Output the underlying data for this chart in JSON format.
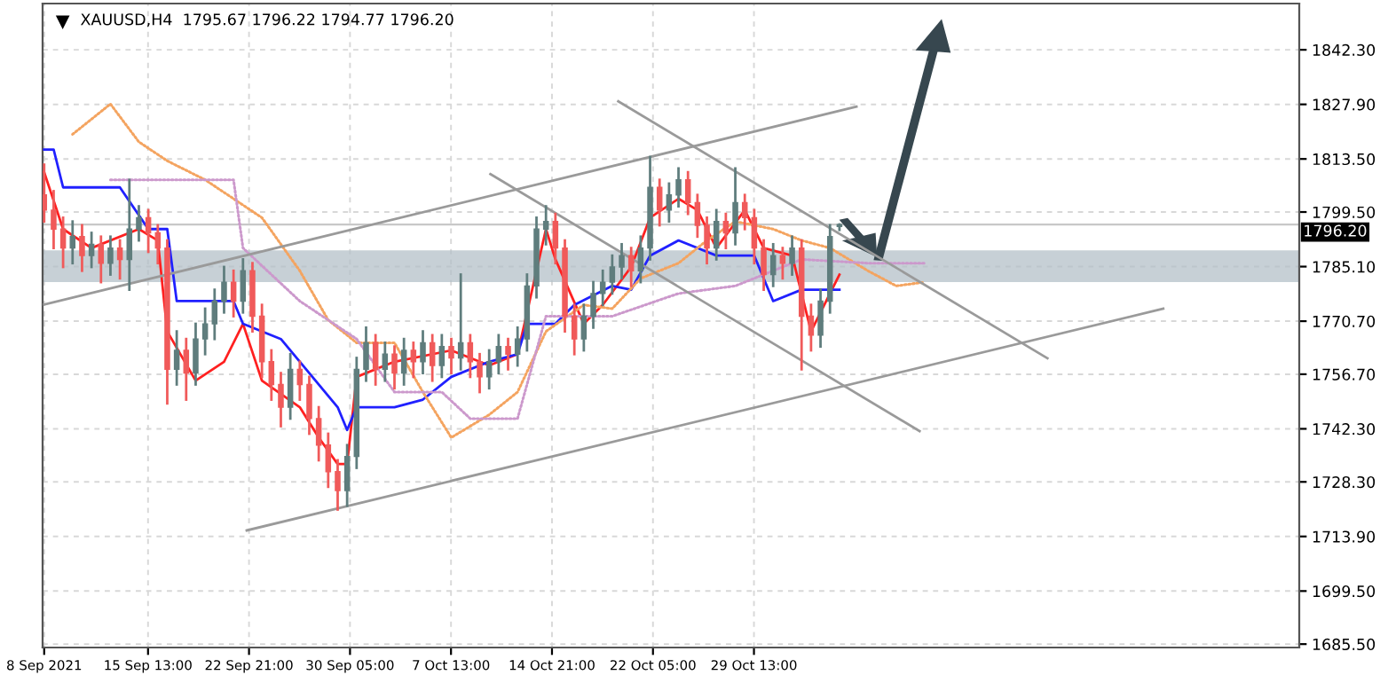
{
  "chart_data": {
    "type": "candlestick",
    "title": "XAUUSD,H4  1795.67 1796.22 1794.77 1796.20",
    "x": [
      "2021-09-08T00:00",
      "2021-09-08T16:30",
      "2021-09-09T09:00",
      "2021-09-10T01:30",
      "2021-09-10T18:00",
      "2021-09-11T10:30",
      "2021-09-12T03:00",
      "2021-09-12T19:30",
      "2021-09-13T12:00",
      "2021-09-14T04:30",
      "2021-09-14T21:00",
      "2021-09-15T13:30",
      "2021-09-16T06:00",
      "2021-09-16T22:30",
      "2021-09-17T15:00",
      "2021-09-18T07:30",
      "2021-09-19T00:00",
      "2021-09-19T16:30",
      "2021-09-20T09:00",
      "2021-09-21T01:30",
      "2021-09-21T18:00",
      "2021-09-22T10:30",
      "2021-09-23T03:00",
      "2021-09-23T19:30",
      "2021-09-24T12:00",
      "2021-09-25T04:30",
      "2021-09-25T21:00",
      "2021-09-26T13:30",
      "2021-09-27T06:00",
      "2021-09-27T22:30",
      "2021-09-28T15:00",
      "2021-09-29T07:30",
      "2021-09-30T00:00",
      "2021-09-30T16:30",
      "2021-10-01T09:00",
      "2021-10-02T01:30",
      "2021-10-02T18:00",
      "2021-10-03T10:30",
      "2021-10-04T03:00",
      "2021-10-04T19:30",
      "2021-10-05T12:00",
      "2021-10-06T04:30",
      "2021-10-06T21:00",
      "2021-10-07T13:30",
      "2021-10-08T06:00",
      "2021-10-08T22:30",
      "2021-10-09T15:00",
      "2021-10-10T07:30",
      "2021-10-11T00:00",
      "2021-10-11T16:30",
      "2021-10-12T09:00",
      "2021-10-13T01:30",
      "2021-10-13T18:00",
      "2021-10-14T10:30",
      "2021-10-15T03:00",
      "2021-10-15T19:30",
      "2021-10-16T12:00",
      "2021-10-17T04:30",
      "2021-10-17T21:00",
      "2021-10-18T13:30",
      "2021-10-19T06:00",
      "2021-10-19T22:30",
      "2021-10-20T15:00",
      "2021-10-21T07:30",
      "2021-10-22T00:00",
      "2021-10-22T16:30",
      "2021-10-23T09:00",
      "2021-10-24T01:30",
      "2021-10-24T18:00",
      "2021-10-25T10:30",
      "2021-10-26T03:00",
      "2021-10-26T19:30",
      "2021-10-27T12:00",
      "2021-10-28T04:30",
      "2021-10-28T21:00",
      "2021-10-29T13:30",
      "2021-10-30T06:00",
      "2021-10-30T22:30",
      "2021-10-31T15:00",
      "2021-11-01T07:30",
      "2021-11-02T00:00",
      "2021-11-02T16:30",
      "2021-11-03T09:00",
      "2021-11-04T01:30",
      "2021-11-04T18:00"
    ],
    "ohlc": [
      [
        1804,
        1812,
        1797,
        1800
      ],
      [
        1800,
        1805,
        1790,
        1795
      ],
      [
        1795,
        1798,
        1785,
        1790
      ],
      [
        1790,
        1797,
        1786,
        1793
      ],
      [
        1793,
        1796,
        1784,
        1788
      ],
      [
        1788,
        1794,
        1785,
        1791
      ],
      [
        1791,
        1793,
        1781,
        1786
      ],
      [
        1786,
        1793,
        1783,
        1790
      ],
      [
        1790,
        1792,
        1782,
        1787
      ],
      [
        1787,
        1808,
        1779,
        1795
      ],
      [
        1795,
        1801,
        1792,
        1798
      ],
      [
        1798,
        1800,
        1789,
        1794
      ],
      [
        1794,
        1796,
        1786,
        1790
      ],
      [
        1790,
        1792,
        1749,
        1758
      ],
      [
        1758,
        1768,
        1754,
        1763
      ],
      [
        1763,
        1766,
        1750,
        1757
      ],
      [
        1757,
        1770,
        1754,
        1766
      ],
      [
        1766,
        1774,
        1762,
        1770
      ],
      [
        1770,
        1779,
        1766,
        1776
      ],
      [
        1776,
        1785,
        1773,
        1781
      ],
      [
        1781,
        1784,
        1772,
        1776
      ],
      [
        1776,
        1787,
        1773,
        1784
      ],
      [
        1784,
        1786,
        1768,
        1772
      ],
      [
        1772,
        1775,
        1756,
        1760
      ],
      [
        1760,
        1763,
        1750,
        1754
      ],
      [
        1754,
        1757,
        1743,
        1748
      ],
      [
        1748,
        1762,
        1745,
        1758
      ],
      [
        1758,
        1760,
        1750,
        1754
      ],
      [
        1754,
        1756,
        1741,
        1745
      ],
      [
        1745,
        1748,
        1734,
        1738
      ],
      [
        1738,
        1741,
        1727,
        1731
      ],
      [
        1731,
        1734,
        1721,
        1726
      ],
      [
        1726,
        1738,
        1722,
        1735
      ],
      [
        1735,
        1761,
        1732,
        1758
      ],
      [
        1758,
        1769,
        1755,
        1765
      ],
      [
        1765,
        1767,
        1754,
        1758
      ],
      [
        1758,
        1765,
        1755,
        1762
      ],
      [
        1762,
        1764,
        1753,
        1757
      ],
      [
        1757,
        1766,
        1754,
        1763
      ],
      [
        1763,
        1765,
        1756,
        1760
      ],
      [
        1760,
        1768,
        1757,
        1765
      ],
      [
        1765,
        1767,
        1755,
        1759
      ],
      [
        1759,
        1767,
        1756,
        1764
      ],
      [
        1764,
        1766,
        1757,
        1761
      ],
      [
        1761,
        1783,
        1758,
        1765
      ],
      [
        1765,
        1767,
        1756,
        1760
      ],
      [
        1760,
        1762,
        1752,
        1756
      ],
      [
        1756,
        1763,
        1753,
        1760
      ],
      [
        1760,
        1767,
        1757,
        1764
      ],
      [
        1764,
        1766,
        1758,
        1762
      ],
      [
        1762,
        1769,
        1759,
        1766
      ],
      [
        1766,
        1783,
        1763,
        1780
      ],
      [
        1780,
        1798,
        1777,
        1795
      ],
      [
        1795,
        1801,
        1791,
        1797
      ],
      [
        1797,
        1799,
        1786,
        1790
      ],
      [
        1790,
        1792,
        1768,
        1772
      ],
      [
        1772,
        1775,
        1762,
        1766
      ],
      [
        1766,
        1775,
        1763,
        1772
      ],
      [
        1772,
        1781,
        1769,
        1778
      ],
      [
        1778,
        1784,
        1775,
        1781
      ],
      [
        1781,
        1788,
        1778,
        1785
      ],
      [
        1785,
        1791,
        1782,
        1788
      ],
      [
        1788,
        1790,
        1780,
        1784
      ],
      [
        1784,
        1793,
        1781,
        1790
      ],
      [
        1790,
        1814,
        1787,
        1806
      ],
      [
        1806,
        1808,
        1796,
        1800
      ],
      [
        1800,
        1807,
        1797,
        1804
      ],
      [
        1804,
        1811,
        1801,
        1808
      ],
      [
        1808,
        1810,
        1799,
        1802
      ],
      [
        1802,
        1804,
        1793,
        1796
      ],
      [
        1796,
        1798,
        1786,
        1790
      ],
      [
        1790,
        1800,
        1787,
        1797
      ],
      [
        1797,
        1799,
        1790,
        1794
      ],
      [
        1794,
        1811,
        1791,
        1802
      ],
      [
        1802,
        1804,
        1795,
        1798
      ],
      [
        1798,
        1800,
        1786,
        1790
      ],
      [
        1790,
        1792,
        1779,
        1783
      ],
      [
        1783,
        1791,
        1780,
        1788
      ],
      [
        1788,
        1790,
        1782,
        1786
      ],
      [
        1786,
        1793,
        1783,
        1790
      ],
      [
        1790,
        1792,
        1758,
        1772
      ],
      [
        1772,
        1775,
        1763,
        1767
      ],
      [
        1767,
        1779,
        1764,
        1776
      ],
      [
        1776,
        1796,
        1773,
        1793
      ],
      [
        1795.67,
        1796.22,
        1794.77,
        1796.2
      ]
    ],
    "colors": [
      "#f05a5a",
      "#f05a5a",
      "#f05a5a",
      "#5f7d7d",
      "#f05a5a",
      "#5f7d7d",
      "#f05a5a",
      "#5f7d7d",
      "#f05a5a",
      "#5f7d7d",
      "#5f7d7d",
      "#f05a5a",
      "#f05a5a",
      "#f05a5a",
      "#5f7d7d",
      "#f05a5a",
      "#5f7d7d",
      "#5f7d7d",
      "#5f7d7d",
      "#5f7d7d",
      "#f05a5a",
      "#5f7d7d",
      "#f05a5a",
      "#f05a5a",
      "#f05a5a",
      "#f05a5a",
      "#5f7d7d",
      "#f05a5a",
      "#f05a5a",
      "#f05a5a",
      "#f05a5a",
      "#f05a5a",
      "#5f7d7d",
      "#5f7d7d",
      "#5f7d7d",
      "#f05a5a",
      "#5f7d7d",
      "#f05a5a",
      "#5f7d7d",
      "#f05a5a",
      "#5f7d7d",
      "#f05a5a",
      "#5f7d7d",
      "#f05a5a",
      "#5f7d7d",
      "#f05a5a",
      "#f05a5a",
      "#5f7d7d",
      "#5f7d7d",
      "#f05a5a",
      "#5f7d7d",
      "#5f7d7d",
      "#5f7d7d",
      "#5f7d7d",
      "#f05a5a",
      "#f05a5a",
      "#f05a5a",
      "#5f7d7d",
      "#5f7d7d",
      "#5f7d7d",
      "#5f7d7d",
      "#5f7d7d",
      "#f05a5a",
      "#5f7d7d",
      "#5f7d7d",
      "#f05a5a",
      "#5f7d7d",
      "#5f7d7d",
      "#f05a5a",
      "#f05a5a",
      "#f05a5a",
      "#5f7d7d",
      "#f05a5a",
      "#5f7d7d",
      "#f05a5a",
      "#f05a5a",
      "#f05a5a",
      "#5f7d7d",
      "#f05a5a",
      "#5f7d7d",
      "#f05a5a",
      "#f05a5a",
      "#5f7d7d",
      "#5f7d7d",
      "#5f7d7d"
    ],
    "series": [
      {
        "type": "line",
        "color": "#ff2020",
        "x": [
          "2021-09-08T00:00",
          "2021-09-09T09:00",
          "2021-09-11T10:30",
          "2021-09-14T21:00",
          "2021-09-16T06:00",
          "2021-09-16T22:30",
          "2021-09-19T00:00",
          "2021-09-21T01:30",
          "2021-09-22T10:30",
          "2021-09-23T19:30",
          "2021-09-26T13:30",
          "2021-09-27T22:30",
          "2021-09-29T07:30",
          "2021-09-30T00:00",
          "2021-09-30T16:30",
          "2021-10-03T10:30",
          "2021-10-07T13:30",
          "2021-10-10T07:30",
          "2021-10-12T09:00",
          "2021-10-14T10:30",
          "2021-10-15T03:00",
          "2021-10-17T04:30",
          "2021-10-18T13:30",
          "2021-10-20T15:00",
          "2021-10-22T00:00",
          "2021-10-24T01:30",
          "2021-10-25T10:30",
          "2021-10-26T19:30",
          "2021-10-28T21:00",
          "2021-10-30T06:00",
          "2021-11-01T07:30",
          "2021-11-02T16:30",
          "2021-11-04T01:30",
          "2021-11-04T18:00"
        ],
        "values": [
          1810,
          1795,
          1790,
          1795,
          1792,
          1768,
          1755,
          1760,
          1770,
          1755,
          1748,
          1740,
          1733,
          1733,
          1756,
          1760,
          1763,
          1759,
          1762,
          1795,
          1787,
          1770,
          1775,
          1785,
          1798,
          1803,
          1800,
          1790,
          1800,
          1790,
          1788,
          1768,
          1778,
          1783
        ]
      },
      {
        "type": "line",
        "color": "#2020ff",
        "x": [
          "2021-09-08T00:00",
          "2021-09-08T16:30",
          "2021-09-09T09:00",
          "2021-09-13T12:00",
          "2021-09-15T13:30",
          "2021-09-16T22:30",
          "2021-09-17T15:00",
          "2021-09-21T18:00",
          "2021-09-22T10:30",
          "2021-09-25T04:30",
          "2021-09-29T07:30",
          "2021-09-30T00:00",
          "2021-09-30T16:30",
          "2021-10-03T10:30",
          "2021-10-05T12:00",
          "2021-10-07T13:30",
          "2021-10-10T07:30",
          "2021-10-12T09:00",
          "2021-10-13T01:30",
          "2021-10-15T03:00",
          "2021-10-16T12:00",
          "2021-10-19T06:00",
          "2021-10-20T15:00",
          "2021-10-22T00:00",
          "2021-10-24T01:30",
          "2021-10-26T19:30",
          "2021-10-29T13:30",
          "2021-10-30T22:30",
          "2021-11-02T00:00",
          "2021-11-04T18:00"
        ],
        "values": [
          1816,
          1816,
          1806,
          1806,
          1795,
          1795,
          1776,
          1776,
          1770,
          1766,
          1748,
          1742,
          1748,
          1748,
          1750,
          1756,
          1760,
          1762,
          1770,
          1770,
          1775,
          1780,
          1779,
          1788,
          1792,
          1788,
          1788,
          1776,
          1779,
          1779
        ]
      },
      {
        "type": "line",
        "color": "#f4a460",
        "line_style": "dotted",
        "x": [
          "2021-09-10T01:30",
          "2021-09-12T19:30",
          "2021-09-14T21:00",
          "2021-09-16T22:30",
          "2021-09-19T16:30",
          "2021-09-23T19:30",
          "2021-09-26T13:30",
          "2021-09-28T15:00",
          "2021-09-30T16:30",
          "2021-10-03T10:30",
          "2021-10-05T12:00",
          "2021-10-07T13:30",
          "2021-10-10T07:30",
          "2021-10-12T09:00",
          "2021-10-14T10:30",
          "2021-10-17T04:30",
          "2021-10-19T06:00",
          "2021-10-21T07:30",
          "2021-10-24T01:30",
          "2021-10-26T03:00",
          "2021-10-28T04:30",
          "2021-10-30T22:30",
          "2021-11-02T00:00",
          "2021-11-04T01:30",
          "2021-11-06T19:30",
          "2021-11-08T21:00",
          "2021-11-10T22:30"
        ],
        "values": [
          1820,
          1828,
          1818,
          1813,
          1808,
          1798,
          1784,
          1771,
          1765,
          1765,
          1752,
          1740,
          1746,
          1752,
          1768,
          1775,
          1774,
          1782,
          1786,
          1792,
          1797,
          1795,
          1792,
          1790,
          1784,
          1780,
          1781
        ]
      },
      {
        "type": "line",
        "color": "#cc99cc",
        "line_style": "dotted",
        "x": [
          "2021-09-12T19:30",
          "2021-09-16T22:30",
          "2021-09-21T18:00",
          "2021-09-22T10:30",
          "2021-09-26T13:30",
          "2021-09-30T16:30",
          "2021-10-03T10:30",
          "2021-10-06T21:00",
          "2021-10-08T22:30",
          "2021-10-12T09:00",
          "2021-10-14T10:30",
          "2021-10-19T06:00",
          "2021-10-24T01:30",
          "2021-10-28T04:30",
          "2021-11-02T00:00",
          "2021-11-06T19:30",
          "2021-11-10T22:30"
        ],
        "values": [
          1808,
          1808,
          1808,
          1790,
          1776,
          1766,
          1752,
          1752,
          1745,
          1745,
          1772,
          1772,
          1778,
          1780,
          1787,
          1786,
          1786
        ]
      },
      {
        "type": "line",
        "color": "#9a9a9a",
        "x": [
          "2021-09-08T00:00",
          "2021-11-05T23:40"
        ],
        "values": [
          1775.1,
          1827.3
        ]
      },
      {
        "type": "line",
        "color": "#9a9a9a",
        "x": [
          "2021-09-22T17:00",
          "2021-11-28T06:20"
        ],
        "values": [
          1715.5,
          1774.0
        ]
      },
      {
        "type": "line",
        "color": "#9a9a9a",
        "x": [
          "2021-10-10T09:40",
          "2021-11-10T13:40"
        ],
        "values": [
          1809.5,
          1741.7
        ]
      },
      {
        "type": "line",
        "color": "#9a9a9a",
        "x": [
          "2021-10-19T16:30",
          "2021-11-19T20:30"
        ],
        "values": [
          1828.7,
          1760.9
        ]
      }
    ],
    "bands": [
      {
        "axis": "y",
        "from": 1781.0,
        "to": 1789.4,
        "color": "#b4c0c8"
      }
    ],
    "ref_lines": [
      {
        "axis": "y",
        "value": 1796.2,
        "label": "1796.20",
        "color": "#c8c8c8"
      }
    ],
    "xlim": [
      "2021-09-07T21:15",
      "2021-12-08T03:20"
    ],
    "xticks": [
      {
        "value": "2021-09-08T00:00",
        "label": "8 Sep 2021"
      },
      {
        "value": "2021-09-15T13:00",
        "label": "15 Sep 13:00"
      },
      {
        "value": "2021-09-22T21:00",
        "label": "22 Sep 21:00"
      },
      {
        "value": "2021-09-30T05:00",
        "label": "30 Sep 05:00"
      },
      {
        "value": "2021-10-07T13:00",
        "label": "7 Oct 13:00"
      },
      {
        "value": "2021-10-14T21:00",
        "label": "14 Oct 21:00"
      },
      {
        "value": "2021-10-22T05:00",
        "label": "22 Oct 05:00"
      },
      {
        "value": "2021-10-29T13:00",
        "label": "29 Oct 13:00"
      }
    ],
    "ylim": [
      1684.6,
      1854.5
    ],
    "yticks": [
      {
        "value": 1685.5,
        "label": "1685.50"
      },
      {
        "value": 1699.5,
        "label": "1699.50"
      },
      {
        "value": 1713.9,
        "label": "1713.90"
      },
      {
        "value": 1728.3,
        "label": "1728.30"
      },
      {
        "value": 1742.3,
        "label": "1742.30"
      },
      {
        "value": 1756.7,
        "label": "1756.70"
      },
      {
        "value": 1770.7,
        "label": "1770.70"
      },
      {
        "value": 1785.1,
        "label": "1785.10"
      },
      {
        "value": 1799.5,
        "label": "1799.50"
      },
      {
        "value": 1813.5,
        "label": "1813.50"
      },
      {
        "value": 1827.9,
        "label": "1827.90"
      },
      {
        "value": 1842.3,
        "label": "1842.30"
      }
    ],
    "grid": true
  }
}
